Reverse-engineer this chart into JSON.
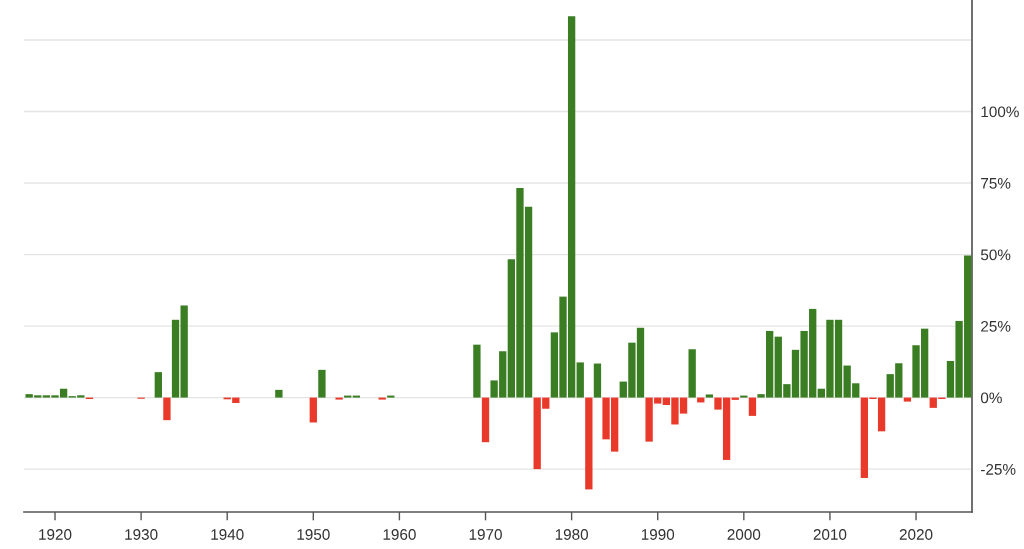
{
  "chart_data": {
    "type": "bar",
    "x": [
      1917,
      1918,
      1919,
      1920,
      1921,
      1922,
      1923,
      1924,
      1925,
      1926,
      1927,
      1928,
      1929,
      1930,
      1931,
      1932,
      1933,
      1934,
      1935,
      1936,
      1937,
      1938,
      1939,
      1940,
      1941,
      1942,
      1943,
      1944,
      1945,
      1946,
      1947,
      1948,
      1949,
      1950,
      1951,
      1952,
      1953,
      1954,
      1955,
      1956,
      1957,
      1958,
      1959,
      1960,
      1961,
      1962,
      1963,
      1964,
      1965,
      1966,
      1967,
      1968,
      1969,
      1970,
      1971,
      1972,
      1973,
      1974,
      1975,
      1976,
      1977,
      1978,
      1979,
      1980,
      1981,
      1982,
      1983,
      1984,
      1985,
      1986,
      1987,
      1988,
      1989,
      1990,
      1991,
      1992,
      1993,
      1994,
      1995,
      1996,
      1997,
      1998,
      1999,
      2000,
      2001,
      2002,
      2003,
      2004,
      2005,
      2006,
      2007,
      2008,
      2009,
      2010,
      2011,
      2012,
      2013,
      2014,
      2015,
      2016,
      2017,
      2018,
      2019,
      2020,
      2021,
      2022,
      2023,
      2024,
      2025,
      2026
    ],
    "values": [
      1.2,
      0.8,
      0.8,
      0.8,
      3.1,
      0.5,
      0.8,
      -0.5,
      null,
      null,
      null,
      null,
      null,
      -0.4,
      null,
      8.9,
      -7.9,
      27.2,
      32.2,
      null,
      null,
      null,
      null,
      -0.6,
      -1.9,
      null,
      null,
      null,
      null,
      2.7,
      null,
      null,
      null,
      -8.7,
      9.7,
      null,
      -0.7,
      0.7,
      0.7,
      null,
      null,
      -0.7,
      0.7,
      null,
      null,
      null,
      null,
      null,
      null,
      null,
      null,
      null,
      18.5,
      -15.6,
      6.0,
      16.2,
      48.4,
      73.3,
      66.7,
      -25.0,
      -3.9,
      22.8,
      35.3,
      133.3,
      12.3,
      -32.1,
      11.9,
      -14.6,
      -18.9,
      5.6,
      19.2,
      24.4,
      -15.4,
      -2.1,
      -2.6,
      -9.4,
      -5.6,
      16.9,
      -1.7,
      1.1,
      -4.2,
      -21.8,
      -0.8,
      0.7,
      -6.4,
      1.2,
      23.3,
      21.3,
      4.7,
      16.7,
      23.3,
      31.0,
      3.1,
      27.2,
      27.2,
      11.2,
      5.0,
      -28.1,
      -0.5,
      -11.8,
      8.2,
      12.0,
      -1.4,
      18.3,
      24.1,
      -3.6,
      -0.5,
      12.8,
      26.8,
      49.7
    ],
    "colors": [
      "#3a7d23",
      "#3a7d23",
      "#3a7d23",
      "#3a7d23",
      "#3a7d23",
      "#3a7d23",
      "#3a7d23",
      "#e8392b",
      null,
      null,
      null,
      null,
      null,
      "#e8392b",
      null,
      "#3a7d23",
      "#e8392b",
      "#3a7d23",
      "#3a7d23",
      null,
      null,
      null,
      null,
      "#e8392b",
      "#e8392b",
      null,
      null,
      null,
      null,
      "#3a7d23",
      null,
      null,
      null,
      "#e8392b",
      "#3a7d23",
      null,
      "#e8392b",
      "#3a7d23",
      "#3a7d23",
      null,
      null,
      "#e8392b",
      "#3a7d23",
      null,
      null,
      null,
      null,
      null,
      null,
      null,
      null,
      null,
      "#3a7d23",
      "#e8392b",
      "#3a7d23",
      "#3a7d23",
      "#3a7d23",
      "#3a7d23",
      "#3a7d23",
      "#e8392b",
      "#e8392b",
      "#3a7d23",
      "#3a7d23",
      "#3a7d23",
      "#3a7d23",
      "#e8392b",
      "#3a7d23",
      "#e8392b",
      "#e8392b",
      "#3a7d23",
      "#3a7d23",
      "#3a7d23",
      "#e8392b",
      "#e8392b",
      "#e8392b",
      "#e8392b",
      "#e8392b",
      "#3a7d23",
      "#e8392b",
      "#3a7d23",
      "#e8392b",
      "#e8392b",
      "#e8392b",
      "#3a7d23",
      "#e8392b",
      "#3a7d23",
      "#3a7d23",
      "#3a7d23",
      "#3a7d23",
      "#3a7d23",
      "#3a7d23",
      "#3a7d23",
      "#3a7d23",
      "#3a7d23",
      "#3a7d23",
      "#3a7d23",
      "#3a7d23",
      "#e8392b",
      "#e8392b",
      "#e8392b",
      "#3a7d23",
      "#3a7d23",
      "#e8392b",
      "#3a7d23",
      "#3a7d23",
      "#e8392b",
      "#e8392b",
      "#3a7d23",
      "#3a7d23",
      "#3a7d23"
    ],
    "xlim": [
      1916.4,
      2026.5
    ],
    "xticks": [
      1920,
      1930,
      1940,
      1950,
      1960,
      1970,
      1980,
      1990,
      2000,
      2010,
      2020
    ],
    "ylim": [
      -40,
      139
    ],
    "yticks": [
      {
        "value": -25,
        "label": "-25%"
      },
      {
        "value": 0,
        "label": "0%"
      },
      {
        "value": 25,
        "label": "25%"
      },
      {
        "value": 50,
        "label": "50%"
      },
      {
        "value": 75,
        "label": "75%"
      },
      {
        "value": 100,
        "label": "100%"
      },
      {
        "value": 125,
        "label": null
      }
    ],
    "grid": "y"
  }
}
